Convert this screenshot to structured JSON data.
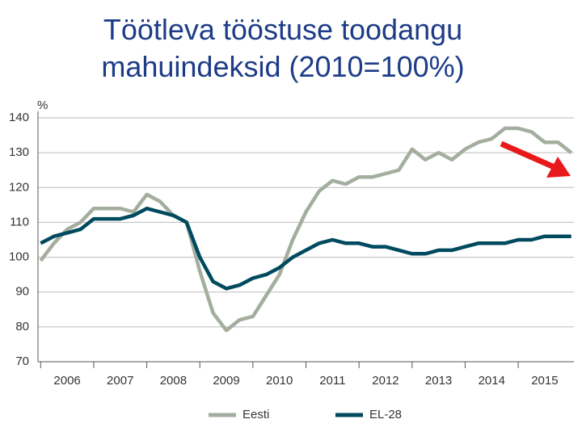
{
  "chart_data": {
    "type": "line",
    "title": "Töötleva tööstuse toodangu mahuindeksid (2010=100%)",
    "y_label": "%",
    "x": [
      2006,
      2006.25,
      2006.5,
      2006.75,
      2007,
      2007.25,
      2007.5,
      2007.75,
      2008,
      2008.25,
      2008.5,
      2008.75,
      2009,
      2009.25,
      2009.5,
      2009.75,
      2010,
      2010.25,
      2010.5,
      2010.75,
      2011,
      2011.25,
      2011.5,
      2011.75,
      2012,
      2012.25,
      2012.5,
      2012.75,
      2013,
      2013.25,
      2013.5,
      2013.75,
      2014,
      2014.25,
      2014.5,
      2014.75,
      2015,
      2015.25,
      2015.5,
      2015.75,
      2016
    ],
    "series": [
      {
        "name": "Eesti",
        "color": "#a4ae9f",
        "values": [
          99,
          104,
          108,
          110,
          114,
          114,
          114,
          113,
          118,
          116,
          112,
          110,
          96,
          84,
          79,
          82,
          83,
          89,
          95,
          105,
          113,
          119,
          122,
          121,
          123,
          123,
          124,
          125,
          131,
          128,
          130,
          128,
          131,
          133,
          134,
          137,
          137,
          136,
          133,
          133,
          130
        ]
      },
      {
        "name": "EL-28",
        "color": "#004a5f",
        "values": [
          104,
          106,
          107,
          108,
          111,
          111,
          111,
          112,
          114,
          113,
          112,
          110,
          100,
          93,
          91,
          92,
          94,
          95,
          97,
          100,
          102,
          104,
          105,
          104,
          104,
          103,
          103,
          102,
          101,
          101,
          102,
          102,
          103,
          104,
          104,
          104,
          105,
          105,
          106,
          106,
          106
        ]
      }
    ],
    "xlim": [
      2005.95,
      2016.05
    ],
    "xticks": [
      {
        "value": 2006.5,
        "label": "2006"
      },
      {
        "value": 2007.5,
        "label": "2007"
      },
      {
        "value": 2008.5,
        "label": "2008"
      },
      {
        "value": 2009.5,
        "label": "2009"
      },
      {
        "value": 2010.5,
        "label": "2010"
      },
      {
        "value": 2011.5,
        "label": "2011"
      },
      {
        "value": 2012.5,
        "label": "2012"
      },
      {
        "value": 2013.5,
        "label": "2013"
      },
      {
        "value": 2014.5,
        "label": "2014"
      },
      {
        "value": 2015.5,
        "label": "2015"
      }
    ],
    "ylim": [
      70,
      140
    ],
    "yticks": [
      70,
      80,
      90,
      100,
      110,
      120,
      130,
      140
    ],
    "grid": true,
    "legend": "bottom"
  }
}
